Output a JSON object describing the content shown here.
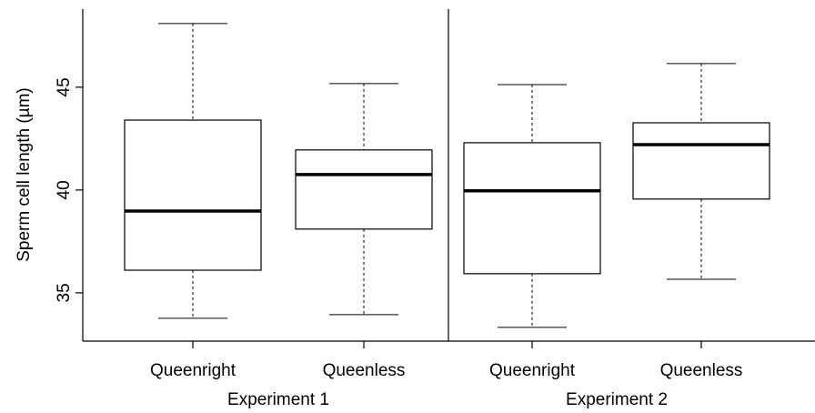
{
  "chart_data": {
    "type": "box",
    "y_label": "Sperm cell length (µm)",
    "categories": [
      "Queenright",
      "Queenless",
      "Queenright",
      "Queenless"
    ],
    "groups": [
      "Experiment 1",
      "Experiment 2"
    ],
    "boxes": [
      {
        "min": 33.76,
        "q1": 36.1,
        "median": 38.98,
        "q3": 43.4,
        "max": 48.1
      },
      {
        "min": 33.94,
        "q1": 38.1,
        "median": 40.75,
        "q3": 41.95,
        "max": 45.18
      },
      {
        "min": 33.32,
        "q1": 35.93,
        "median": 39.96,
        "q3": 42.3,
        "max": 45.13
      },
      {
        "min": 35.66,
        "q1": 39.56,
        "median": 42.21,
        "q3": 43.27,
        "max": 46.15
      }
    ],
    "ylim": [
      32.65,
      48.8
    ],
    "yticks": [
      35,
      40,
      45
    ]
  }
}
